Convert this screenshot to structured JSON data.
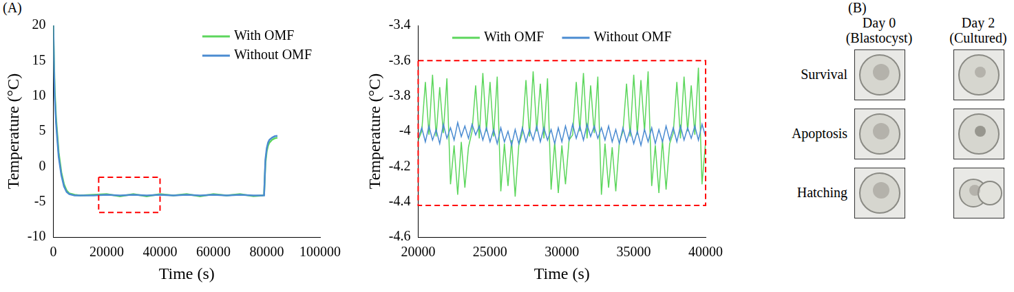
{
  "panel_labels": [
    "(A)",
    "(B)"
  ],
  "chart_data": [
    {
      "type": "line",
      "x_label": "Time (s)",
      "y_label": "Temperature (°C)",
      "x": [
        0,
        250,
        500,
        1000,
        1500,
        2000,
        3000,
        4000,
        5000,
        6000,
        8000,
        10000,
        15000,
        20000,
        25000,
        30000,
        35000,
        40000,
        45000,
        50000,
        55000,
        60000,
        65000,
        70000,
        75000,
        78500,
        79000,
        79500,
        80000,
        80500,
        81000,
        82000,
        83000,
        84000
      ],
      "series": [
        {
          "name": "With OMF",
          "color": "#5cd65c",
          "values": [
            20,
            15,
            11,
            7,
            4.5,
            2,
            -0.8,
            -2.5,
            -3.4,
            -3.8,
            -4.0,
            -4.1,
            -4.0,
            -3.9,
            -4.2,
            -3.9,
            -4.2,
            -3.9,
            -4.1,
            -3.9,
            -4.2,
            -3.9,
            -4.1,
            -3.9,
            -4.2,
            -4.1,
            -4.0,
            0.5,
            2.2,
            3.0,
            3.4,
            3.8,
            4.0,
            4.1
          ]
        },
        {
          "name": "Without OMF",
          "color": "#4a8bd1",
          "values": [
            20,
            14,
            10,
            6.3,
            3.8,
            1.4,
            -1.2,
            -2.8,
            -3.6,
            -3.9,
            -4.1,
            -4.1,
            -4.1,
            -4.0,
            -4.1,
            -4.0,
            -4.1,
            -4.0,
            -4.1,
            -4.0,
            -4.1,
            -4.0,
            -4.1,
            -4.0,
            -4.1,
            -4.1,
            -4.1,
            1.0,
            2.6,
            3.4,
            3.8,
            4.1,
            4.3,
            4.35
          ]
        }
      ],
      "xlim": [
        0,
        100000
      ],
      "xticks": [
        0,
        20000,
        40000,
        60000,
        80000,
        100000
      ],
      "ylim": [
        -10,
        20
      ],
      "yticks": [
        -10,
        -5,
        0,
        5,
        10,
        15,
        20
      ],
      "grid": false,
      "legend": "upper right",
      "zoom_box": {
        "x": [
          17000,
          40000
        ],
        "y": [
          -6.5,
          -1.5
        ],
        "color": "#ff0000",
        "line_style": "dashed"
      }
    },
    {
      "type": "line",
      "x_label": "Time (s)",
      "y_label": "Temperature (°C)",
      "x": [
        20000,
        20250,
        20500,
        20750,
        21000,
        21250,
        21500,
        21750,
        22000,
        22250,
        22500,
        22750,
        23000,
        23250,
        23500,
        23750,
        24000,
        24250,
        24500,
        24750,
        25000,
        25250,
        25500,
        25750,
        26000,
        26250,
        26500,
        26750,
        27000,
        27250,
        27500,
        27750,
        28000,
        28250,
        28500,
        28750,
        29000,
        29250,
        29500,
        29750,
        30000,
        30250,
        30500,
        30750,
        31000,
        31250,
        31500,
        31750,
        32000,
        32250,
        32500,
        32750,
        33000,
        33250,
        33500,
        33750,
        34000,
        34250,
        34500,
        34750,
        35000,
        35250,
        35500,
        35750,
        36000,
        36250,
        36500,
        36750,
        37000,
        37250,
        37500,
        37750,
        38000,
        38250,
        38500,
        38750,
        39000,
        39250,
        39500,
        39750,
        40000
      ],
      "series": [
        {
          "name": "With OMF",
          "color": "#5cd65c",
          "values": [
            -4.05,
            -4.0,
            -3.72,
            -4.02,
            -3.68,
            -4.03,
            -3.75,
            -4.01,
            -3.7,
            -4.3,
            -4.08,
            -4.36,
            -4.06,
            -4.32,
            -4.09,
            -4.0,
            -3.74,
            -4.04,
            -3.67,
            -4.0,
            -3.72,
            -4.03,
            -3.69,
            -4.34,
            -4.07,
            -4.31,
            -4.05,
            -4.37,
            -4.08,
            -4.01,
            -3.71,
            -4.03,
            -3.66,
            -4.0,
            -3.73,
            -4.04,
            -3.7,
            -4.33,
            -4.06,
            -4.35,
            -4.08,
            -4.3,
            -4.05,
            -4.02,
            -3.72,
            -4.0,
            -3.67,
            -4.04,
            -3.74,
            -4.01,
            -3.69,
            -4.36,
            -4.07,
            -4.32,
            -4.09,
            -4.34,
            -4.06,
            -4.0,
            -3.73,
            -4.03,
            -3.68,
            -4.02,
            -3.71,
            -4.0,
            -3.66,
            -4.31,
            -4.08,
            -4.35,
            -4.05,
            -4.33,
            -4.07,
            -4.01,
            -3.72,
            -4.04,
            -3.69,
            -4.0,
            -3.74,
            -4.02,
            -3.64,
            -4.3,
            -4.06
          ]
        },
        {
          "name": "Without OMF",
          "color": "#4a8bd1",
          "values": [
            -4.04,
            -3.98,
            -4.06,
            -3.97,
            -4.05,
            -3.99,
            -4.07,
            -3.96,
            -4.04,
            -3.98,
            -4.05,
            -3.95,
            -4.03,
            -3.97,
            -4.04,
            -3.96,
            -4.02,
            -3.97,
            -4.05,
            -3.98,
            -4.06,
            -3.99,
            -4.07,
            -3.98,
            -4.06,
            -4.0,
            -4.08,
            -3.99,
            -4.07,
            -3.98,
            -4.06,
            -3.99,
            -4.05,
            -3.97,
            -4.06,
            -3.98,
            -4.05,
            -3.99,
            -4.07,
            -3.98,
            -4.06,
            -3.97,
            -4.05,
            -3.96,
            -4.04,
            -3.97,
            -4.05,
            -3.96,
            -4.03,
            -3.97,
            -4.04,
            -3.98,
            -4.05,
            -3.97,
            -4.06,
            -3.99,
            -4.07,
            -3.98,
            -4.06,
            -3.99,
            -4.07,
            -4.0,
            -4.08,
            -3.99,
            -4.06,
            -3.98,
            -4.07,
            -3.99,
            -4.06,
            -3.97,
            -4.05,
            -3.98,
            -4.06,
            -3.97,
            -4.05,
            -3.98,
            -4.04,
            -3.97,
            -4.05,
            -3.96,
            -4.03
          ]
        }
      ],
      "xlim": [
        20000,
        40000
      ],
      "xticks": [
        20000,
        25000,
        30000,
        35000,
        40000
      ],
      "ylim": [
        -4.6,
        -3.4
      ],
      "yticks": [
        -4.6,
        -4.4,
        -4.2,
        -4,
        -3.8,
        -3.6,
        -3.4
      ],
      "grid": false,
      "legend": "upper center",
      "zoom_box": {
        "x": [
          20000,
          40000
        ],
        "y": [
          -4.42,
          -3.6
        ],
        "color": "#ff0000",
        "line_style": "dashed"
      }
    }
  ],
  "image_grid": {
    "columns": [
      {
        "title": "Day 0",
        "subtitle": "(Blastocyst)"
      },
      {
        "title": "Day 2",
        "subtitle": "(Cultured)"
      }
    ],
    "rows": [
      "Survival",
      "Apoptosis",
      "Hatching"
    ]
  }
}
